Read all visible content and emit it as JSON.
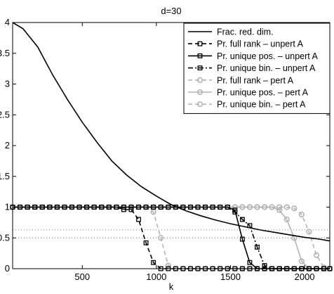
{
  "chart_data": {
    "type": "line",
    "title": "d=30",
    "xlabel": "k",
    "ylabel": "",
    "xlim": [
      30,
      2170
    ],
    "ylim": [
      0,
      4
    ],
    "xticks": [
      "500",
      "1000",
      "1500",
      "2000"
    ],
    "yticks": [
      "0",
      "0.5",
      "1",
      "1.5",
      "2",
      "2.5",
      "3",
      "3.5",
      "4"
    ],
    "grid": "dotted reference lines at y=0.5 and y=0.63",
    "legend_position": "top-right",
    "series": [
      {
        "name": "Frac. red. dim.",
        "color": "#000000",
        "style": "solid",
        "marker": "none",
        "x": [
          30,
          100,
          200,
          300,
          400,
          500,
          600,
          700,
          800,
          900,
          1000,
          1100,
          1200,
          1300,
          1400,
          1500,
          1600,
          1700,
          1800,
          1900,
          2000,
          2100,
          2170
        ],
        "y": [
          4.0,
          3.9,
          3.6,
          3.15,
          2.75,
          2.38,
          2.05,
          1.75,
          1.52,
          1.33,
          1.18,
          1.04,
          0.94,
          0.86,
          0.79,
          0.73,
          0.68,
          0.63,
          0.59,
          0.55,
          0.51,
          0.48,
          0.45
        ]
      },
      {
        "name": "Pr. full rank – unpert A",
        "color": "#000000",
        "style": "dashed",
        "marker": "square",
        "x": [
          30,
          80,
          130,
          180,
          230,
          280,
          330,
          380,
          430,
          480,
          530,
          580,
          630,
          680,
          730,
          780,
          830,
          880,
          930,
          980,
          1030,
          1080,
          1130,
          1180,
          1230,
          1280,
          1330,
          1380,
          1430,
          1480,
          1530,
          1580,
          1630,
          1680,
          1730,
          1780,
          1830,
          1880,
          1930,
          1980,
          2030,
          2080,
          2130,
          2170
        ],
        "y": [
          1,
          1,
          1,
          1,
          1,
          1,
          1,
          1,
          1,
          1,
          1,
          1,
          1,
          1,
          1,
          0.96,
          0.96,
          0.8,
          0.42,
          0.1,
          0,
          0,
          0,
          0,
          0,
          0,
          0,
          0,
          0,
          0,
          0,
          0,
          0,
          0,
          0,
          0,
          0,
          0,
          0,
          0,
          0,
          0,
          0,
          0
        ]
      },
      {
        "name": "Pr. unique pos. – unpert A",
        "color": "#000000",
        "style": "solid",
        "marker": "square",
        "x": [
          30,
          80,
          130,
          180,
          230,
          280,
          330,
          380,
          430,
          480,
          530,
          580,
          630,
          680,
          730,
          780,
          830,
          880,
          930,
          980,
          1030,
          1080,
          1130,
          1180,
          1230,
          1280,
          1330,
          1380,
          1430,
          1480,
          1530,
          1580,
          1630,
          1680,
          1730,
          1780,
          1830,
          1880,
          1930,
          1980,
          2030,
          2080,
          2130,
          2170
        ],
        "y": [
          1,
          1,
          1,
          1,
          1,
          1,
          1,
          1,
          1,
          1,
          1,
          1,
          1,
          1,
          1,
          1,
          1,
          1,
          1,
          1,
          1,
          1,
          1,
          1,
          1,
          1,
          1,
          1,
          1,
          1,
          0.95,
          0.48,
          0.1,
          0,
          0,
          0,
          0,
          0,
          0,
          0,
          0,
          0,
          0,
          0
        ]
      },
      {
        "name": "Pr. unique bin. – unpert A",
        "color": "#000000",
        "style": "dashdot",
        "marker": "square",
        "x": [
          30,
          80,
          130,
          180,
          230,
          280,
          330,
          380,
          430,
          480,
          530,
          580,
          630,
          680,
          730,
          780,
          830,
          880,
          930,
          980,
          1030,
          1080,
          1130,
          1180,
          1230,
          1280,
          1330,
          1380,
          1430,
          1480,
          1530,
          1580,
          1630,
          1680,
          1730,
          1780,
          1830,
          1880,
          1930,
          1980,
          2030,
          2080,
          2130,
          2170
        ],
        "y": [
          1,
          1,
          1,
          1,
          1,
          1,
          1,
          1,
          1,
          1,
          1,
          1,
          1,
          1,
          1,
          1,
          1,
          1,
          1,
          1,
          1,
          1,
          1,
          1,
          1,
          1,
          1,
          1,
          1,
          1,
          0.92,
          0.8,
          0.7,
          0.35,
          0.05,
          0,
          0,
          0,
          0,
          0,
          0,
          0,
          0,
          0
        ]
      },
      {
        "name": "Pr. full rank – pert A",
        "color": "#b4b4b4",
        "style": "dashed",
        "marker": "circle",
        "x": [
          30,
          80,
          130,
          180,
          230,
          280,
          330,
          380,
          430,
          480,
          530,
          580,
          630,
          680,
          730,
          780,
          830,
          880,
          930,
          980,
          1030,
          1080,
          1130,
          1180,
          1230,
          1280,
          1330,
          1380,
          1430,
          1480,
          1530,
          1580,
          1630,
          1680,
          1730,
          1780,
          1830,
          1880,
          1930,
          1980,
          2030,
          2080,
          2130,
          2170
        ],
        "y": [
          1,
          1,
          1,
          1,
          1,
          1,
          1,
          1,
          1,
          1,
          1,
          1,
          1,
          1,
          1,
          1,
          1,
          1,
          1,
          0.92,
          0.5,
          0.05,
          0,
          0,
          0,
          0,
          0,
          0,
          0,
          0,
          0,
          0,
          0,
          0,
          0,
          0,
          0,
          0,
          0,
          0,
          0,
          0,
          0,
          0
        ]
      },
      {
        "name": "Pr. unique pos. – pert A",
        "color": "#b4b4b4",
        "style": "solid",
        "marker": "circle",
        "x": [
          30,
          80,
          130,
          180,
          230,
          280,
          330,
          380,
          430,
          480,
          530,
          580,
          630,
          680,
          730,
          780,
          830,
          880,
          930,
          980,
          1030,
          1080,
          1130,
          1180,
          1230,
          1280,
          1330,
          1380,
          1430,
          1480,
          1530,
          1580,
          1630,
          1680,
          1730,
          1780,
          1830,
          1880,
          1930,
          1980,
          2030,
          2080,
          2130,
          2170
        ],
        "y": [
          1,
          1,
          1,
          1,
          1,
          1,
          1,
          1,
          1,
          1,
          1,
          1,
          1,
          1,
          1,
          1,
          1,
          1,
          1,
          1,
          1,
          1,
          1,
          1,
          1,
          1,
          1,
          1,
          1,
          1,
          1,
          1,
          1,
          1,
          1,
          1,
          0.95,
          0.8,
          0.5,
          0.12,
          0,
          0,
          0,
          0
        ]
      },
      {
        "name": "Pr. unique bin. – pert A",
        "color": "#b4b4b4",
        "style": "dashed",
        "marker": "circle",
        "x": [
          30,
          80,
          130,
          180,
          230,
          280,
          330,
          380,
          430,
          480,
          530,
          580,
          630,
          680,
          730,
          780,
          830,
          880,
          930,
          980,
          1030,
          1080,
          1130,
          1180,
          1230,
          1280,
          1330,
          1380,
          1430,
          1480,
          1530,
          1580,
          1630,
          1680,
          1730,
          1780,
          1830,
          1880,
          1930,
          1980,
          2030,
          2080,
          2130,
          2170
        ],
        "y": [
          1,
          1,
          1,
          1,
          1,
          1,
          1,
          1,
          1,
          1,
          1,
          1,
          1,
          1,
          1,
          1,
          1,
          1,
          1,
          1,
          1,
          1,
          1,
          1,
          1,
          1,
          1,
          1,
          1,
          1,
          1,
          1,
          1,
          1,
          1,
          1,
          1,
          1,
          0.98,
          0.88,
          0.6,
          0.22,
          0.02,
          0
        ]
      }
    ]
  }
}
